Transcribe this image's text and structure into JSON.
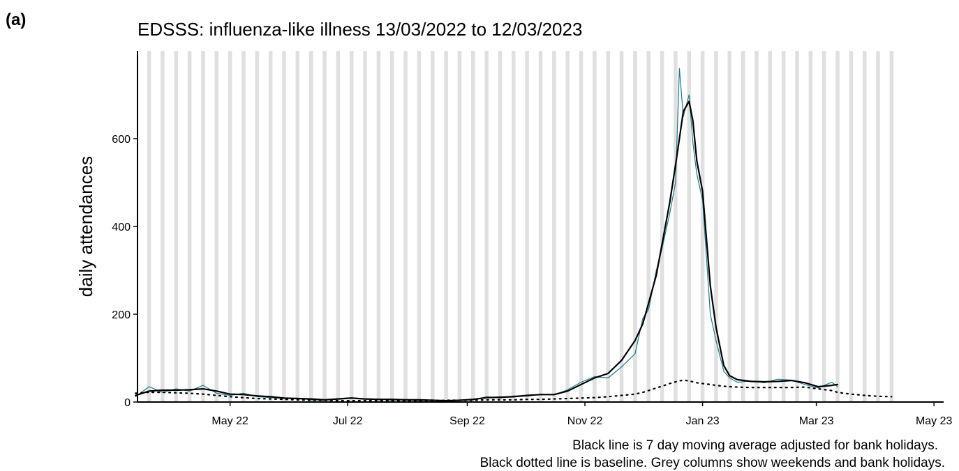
{
  "panel_label": "(a)",
  "chart_data": {
    "type": "line",
    "title": "EDSSS: influenza-like illness 13/03/2022 to 12/03/2023",
    "y_label": "daily attendances",
    "notes": [
      "Black line is 7 day moving average adjusted for bank holidays.",
      "Black dotted line is baseline. Grey columns show weekends and bank holidays."
    ],
    "x": [
      "2022-03-13",
      "2022-03-20",
      "2022-03-27",
      "2022-04-03",
      "2022-04-10",
      "2022-04-17",
      "2022-04-24",
      "2022-05-01",
      "2022-05-08",
      "2022-05-15",
      "2022-05-22",
      "2022-05-29",
      "2022-06-05",
      "2022-06-12",
      "2022-06-19",
      "2022-06-26",
      "2022-07-03",
      "2022-07-10",
      "2022-07-17",
      "2022-07-24",
      "2022-07-31",
      "2022-08-07",
      "2022-08-14",
      "2022-08-21",
      "2022-08-28",
      "2022-09-04",
      "2022-09-11",
      "2022-09-18",
      "2022-09-25",
      "2022-10-02",
      "2022-10-09",
      "2022-10-16",
      "2022-10-23",
      "2022-10-30",
      "2022-11-06",
      "2022-11-13",
      "2022-11-20",
      "2022-11-27",
      "2022-12-01",
      "2022-12-04",
      "2022-12-08",
      "2022-12-11",
      "2022-12-15",
      "2022-12-18",
      "2022-12-20",
      "2022-12-22",
      "2022-12-25",
      "2022-12-27",
      "2022-12-29",
      "2023-01-01",
      "2023-01-05",
      "2023-01-08",
      "2023-01-12",
      "2023-01-15",
      "2023-01-19",
      "2023-01-26",
      "2023-02-02",
      "2023-02-09",
      "2023-02-16",
      "2023-02-23",
      "2023-03-02",
      "2023-03-09",
      "2023-03-12",
      "2023-03-19",
      "2023-03-26",
      "2023-04-02",
      "2023-04-09"
    ],
    "series": [
      {
        "color": "#1b7a8c",
        "width": 1.2,
        "dash": "none",
        "values": [
          12,
          35,
          22,
          30,
          25,
          38,
          20,
          15,
          20,
          12,
          10,
          8,
          9,
          5,
          4,
          8,
          10,
          6,
          7,
          4,
          6,
          3,
          5,
          2,
          4,
          5,
          12,
          9,
          14,
          13,
          18,
          16,
          28,
          45,
          58,
          55,
          80,
          110,
          190,
          210,
          300,
          350,
          430,
          500,
          760,
          650,
          700,
          590,
          520,
          460,
          200,
          140,
          70,
          55,
          45,
          48,
          44,
          52,
          50,
          40,
          32,
          45,
          35,
          null,
          null,
          null,
          null
        ]
      },
      {
        "color": "#000000",
        "width": 2.2,
        "dash": "none",
        "values": [
          15,
          25,
          27,
          27,
          28,
          30,
          25,
          18,
          17,
          14,
          12,
          9,
          8,
          7,
          5,
          7,
          9,
          7,
          6,
          6,
          5,
          5,
          4,
          3,
          4,
          6,
          10,
          11,
          12,
          15,
          17,
          17,
          25,
          40,
          55,
          65,
          95,
          140,
          178,
          225,
          289,
          360,
          455,
          540,
          600,
          662,
          685,
          640,
          550,
          480,
          265,
          170,
          83,
          60,
          51,
          47,
          46,
          47,
          49,
          44,
          35,
          38,
          40,
          null,
          null,
          null,
          null
        ]
      },
      {
        "color": "#000000",
        "width": 2.2,
        "dash": "2 6",
        "values": [
          20,
          22,
          22,
          21,
          20,
          18,
          15,
          12,
          10,
          8,
          7,
          6,
          5,
          4,
          4,
          3,
          3,
          3,
          3,
          3,
          3,
          3,
          3,
          4,
          4,
          4,
          5,
          5,
          5,
          6,
          6,
          7,
          8,
          9,
          10,
          12,
          15,
          18,
          22,
          26,
          32,
          36,
          42,
          46,
          48,
          50,
          48,
          46,
          44,
          42,
          40,
          38,
          36,
          35,
          34,
          33,
          33,
          33,
          33,
          34,
          30,
          26,
          22,
          18,
          15,
          13,
          12
        ]
      }
    ],
    "weekend_color": "#e0e0e0",
    "xlim": [
      "2022-03-14",
      "2023-05-06"
    ],
    "xticks": [
      {
        "value": "2022-05-01",
        "label": "May 22"
      },
      {
        "value": "2022-07-01",
        "label": "Jul 22"
      },
      {
        "value": "2022-09-01",
        "label": "Sep 22"
      },
      {
        "value": "2022-11-01",
        "label": "Nov 22"
      },
      {
        "value": "2023-01-01",
        "label": "Jan 23"
      },
      {
        "value": "2023-03-01",
        "label": "Mar 23"
      },
      {
        "value": "2023-05-01",
        "label": "May 23"
      }
    ],
    "ylim": [
      0,
      800
    ],
    "yticks": [
      0,
      200,
      400,
      600
    ],
    "grid": false
  }
}
